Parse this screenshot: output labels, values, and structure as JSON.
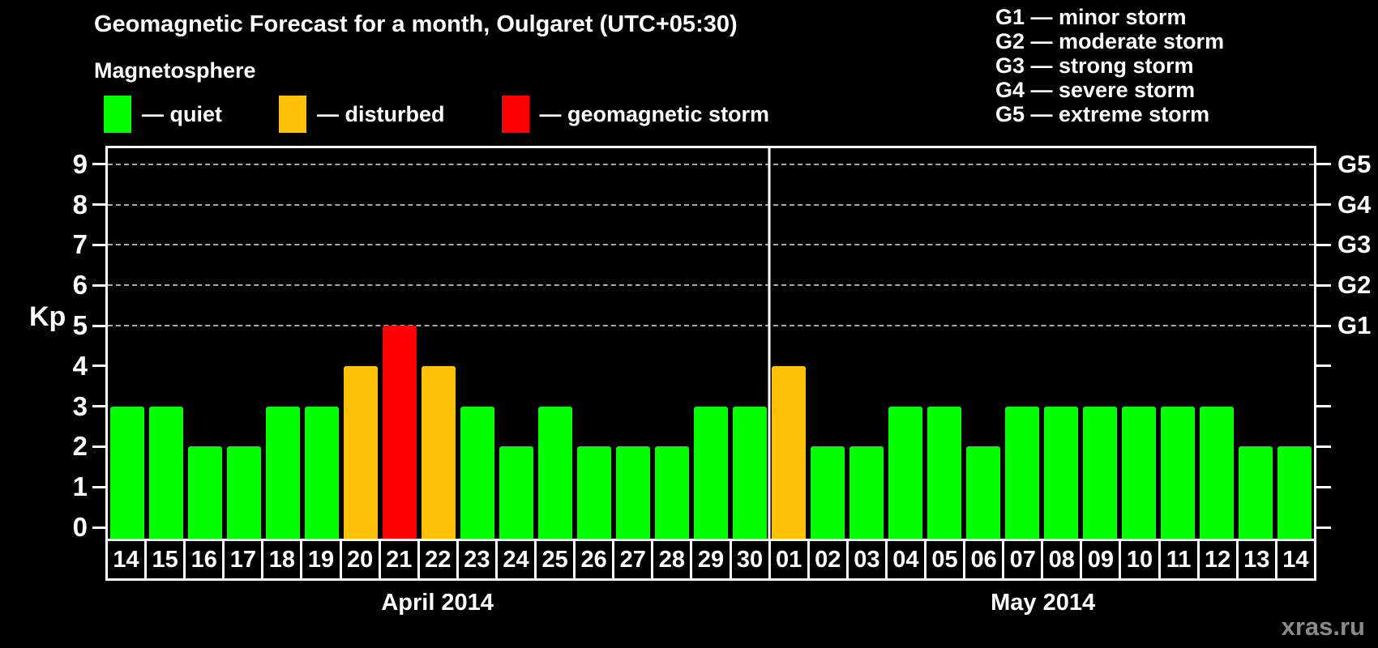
{
  "page": {
    "background": "#000000",
    "watermark": "xras.ru"
  },
  "header": {
    "title": "Geomagnetic Forecast for a month, Oulgaret (UTC+05:30)",
    "legend_title": "Magnetosphere",
    "legend_items": [
      {
        "name": "quiet",
        "label": "— quiet",
        "color": "#00FF00"
      },
      {
        "name": "disturbed",
        "label": "— disturbed",
        "color": "#FFC107"
      },
      {
        "name": "storm",
        "label": "— geomagnetic storm",
        "color": "#FF0000"
      }
    ],
    "g_scale_legend": [
      "G1 — minor storm",
      "G2 — moderate storm",
      "G3 — strong storm",
      "G4 — severe storm",
      "G5 — extreme storm"
    ]
  },
  "chart_data": {
    "type": "bar",
    "title": "Geomagnetic Forecast for a month, Oulgaret (UTC+05:30)",
    "ylabel": "Kp",
    "ylim": [
      0,
      9
    ],
    "yticks": [
      0,
      1,
      2,
      3,
      4,
      5,
      6,
      7,
      8,
      9
    ],
    "right_axis": [
      {
        "kp": 5,
        "label": "G1"
      },
      {
        "kp": 6,
        "label": "G2"
      },
      {
        "kp": 7,
        "label": "G3"
      },
      {
        "kp": 8,
        "label": "G4"
      },
      {
        "kp": 9,
        "label": "G5"
      }
    ],
    "gridline_levels": [
      5,
      6,
      7,
      8,
      9
    ],
    "grid": "dashed-at-storm-levels-only",
    "legend_position": "top",
    "status_colors": {
      "quiet": "#00FF00",
      "disturbed": "#FFC107",
      "storm": "#FF0000"
    },
    "months": [
      {
        "label": "April 2014",
        "days": [
          {
            "date": "14",
            "kp": 3,
            "status": "quiet"
          },
          {
            "date": "15",
            "kp": 3,
            "status": "quiet"
          },
          {
            "date": "16",
            "kp": 2,
            "status": "quiet"
          },
          {
            "date": "17",
            "kp": 2,
            "status": "quiet"
          },
          {
            "date": "18",
            "kp": 3,
            "status": "quiet"
          },
          {
            "date": "19",
            "kp": 3,
            "status": "quiet"
          },
          {
            "date": "20",
            "kp": 4,
            "status": "disturbed"
          },
          {
            "date": "21",
            "kp": 5,
            "status": "storm"
          },
          {
            "date": "22",
            "kp": 4,
            "status": "disturbed"
          },
          {
            "date": "23",
            "kp": 3,
            "status": "quiet"
          },
          {
            "date": "24",
            "kp": 2,
            "status": "quiet"
          },
          {
            "date": "25",
            "kp": 3,
            "status": "quiet"
          },
          {
            "date": "26",
            "kp": 2,
            "status": "quiet"
          },
          {
            "date": "27",
            "kp": 2,
            "status": "quiet"
          },
          {
            "date": "28",
            "kp": 2,
            "status": "quiet"
          },
          {
            "date": "29",
            "kp": 3,
            "status": "quiet"
          },
          {
            "date": "30",
            "kp": 3,
            "status": "quiet"
          }
        ]
      },
      {
        "label": "May 2014",
        "days": [
          {
            "date": "01",
            "kp": 4,
            "status": "disturbed"
          },
          {
            "date": "02",
            "kp": 2,
            "status": "quiet"
          },
          {
            "date": "03",
            "kp": 2,
            "status": "quiet"
          },
          {
            "date": "04",
            "kp": 3,
            "status": "quiet"
          },
          {
            "date": "05",
            "kp": 3,
            "status": "quiet"
          },
          {
            "date": "06",
            "kp": 2,
            "status": "quiet"
          },
          {
            "date": "07",
            "kp": 3,
            "status": "quiet"
          },
          {
            "date": "08",
            "kp": 3,
            "status": "quiet"
          },
          {
            "date": "09",
            "kp": 3,
            "status": "quiet"
          },
          {
            "date": "10",
            "kp": 3,
            "status": "quiet"
          },
          {
            "date": "11",
            "kp": 3,
            "status": "quiet"
          },
          {
            "date": "12",
            "kp": 3,
            "status": "quiet"
          },
          {
            "date": "13",
            "kp": 2,
            "status": "quiet"
          },
          {
            "date": "14",
            "kp": 2,
            "status": "quiet"
          }
        ]
      }
    ]
  }
}
